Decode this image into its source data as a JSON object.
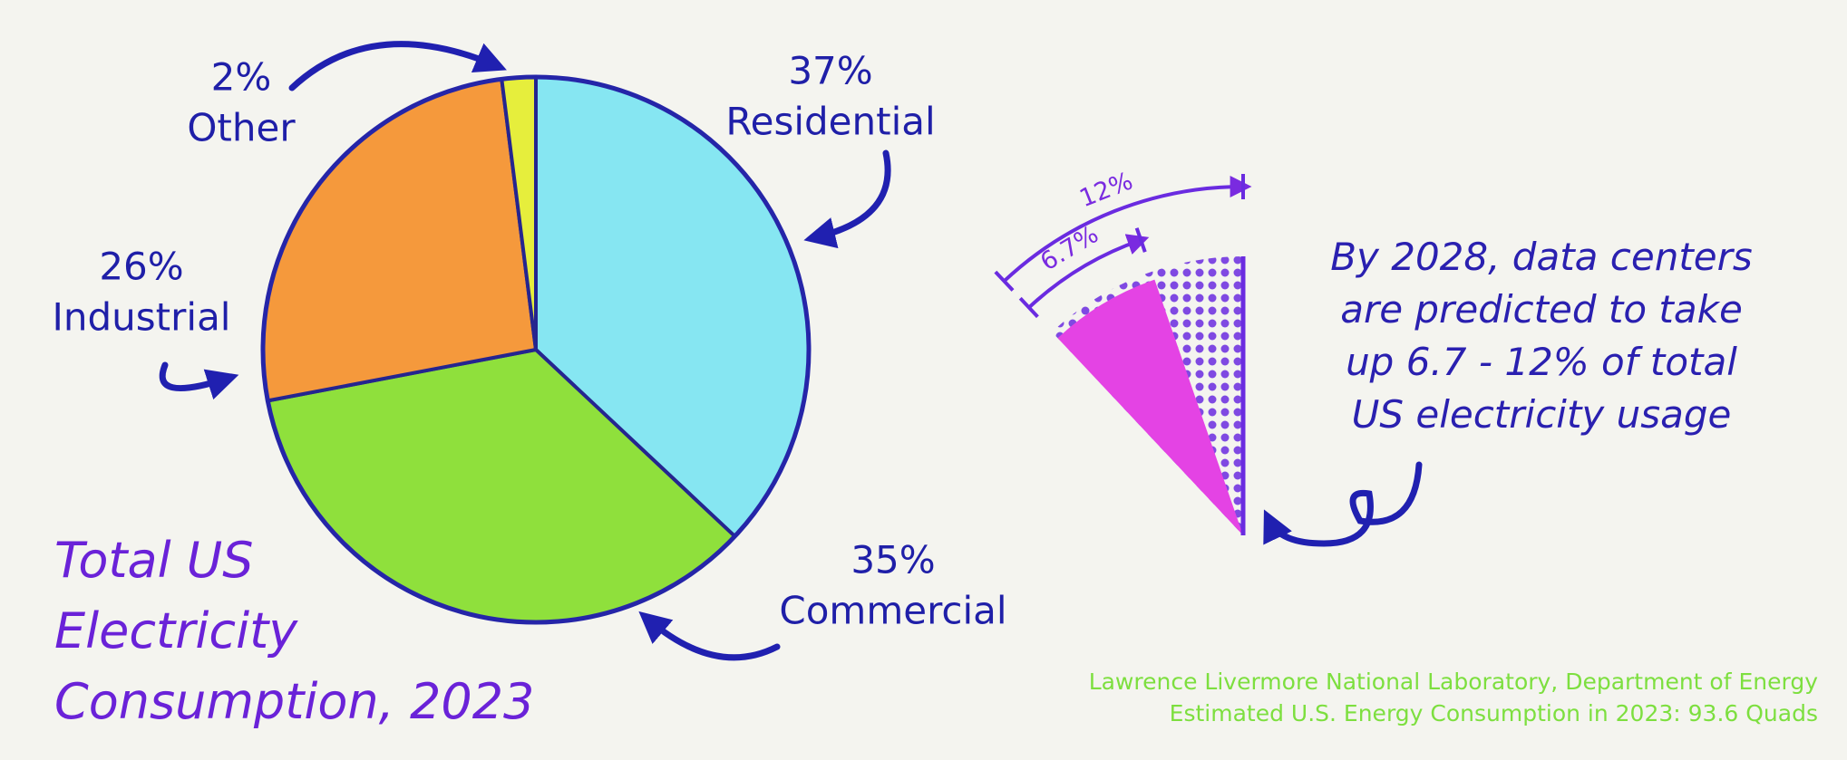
{
  "chart_data": [
    {
      "type": "pie",
      "title": "Total US\nElectricity\nConsumption, 2023",
      "categories": [
        "Residential",
        "Commercial",
        "Industrial",
        "Other"
      ],
      "values": [
        37,
        35,
        26,
        2
      ],
      "value_labels": [
        "37%",
        "35%",
        "26%",
        "2%"
      ],
      "colors": [
        "#86e6f2",
        "#8fe03c",
        "#f5993c",
        "#e6ee3c"
      ]
    },
    {
      "type": "wedge",
      "values": [
        6.7,
        12
      ],
      "value_labels": [
        "6.7%",
        "12%"
      ],
      "colors": [
        "#e443e4",
        "#6a2be0"
      ],
      "annotation": "By 2028, data centers\nare predicted to take\nup 6.7 - 12% of total\nUS electricity usage",
      "source": [
        "Lawrence Livermore National Laboratory, Department of Energy",
        "Estimated U.S. Energy Consumption in 2023: 93.6 Quads"
      ]
    }
  ]
}
